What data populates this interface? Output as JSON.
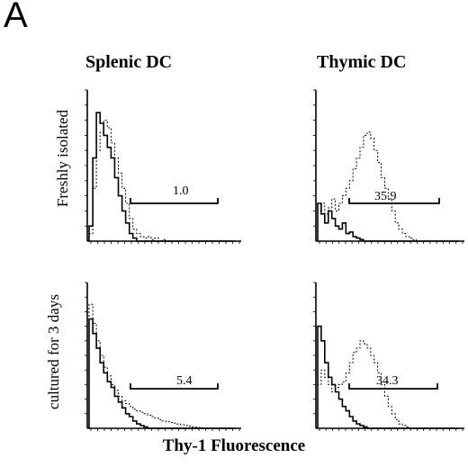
{
  "panel_label": "A",
  "columns": [
    "Splenic DC",
    "Thymic DC"
  ],
  "rows": [
    "Freshly isolated",
    "cultured for 3 days"
  ],
  "x_axis_title": "Thy-1 Fluorescence",
  "chart_data": [
    {
      "type": "area",
      "panel": "Splenic DC – Freshly isolated",
      "gate_percent": "1.0",
      "series": [
        {
          "style": "solid",
          "values": [
            0.1,
            0.55,
            0.85,
            0.78,
            0.7,
            0.62,
            0.55,
            0.42,
            0.3,
            0.2,
            0.12,
            0.05,
            0.02,
            0,
            0,
            0,
            0,
            0,
            0,
            0,
            0,
            0,
            0,
            0,
            0,
            0,
            0,
            0,
            0,
            0,
            0,
            0,
            0,
            0,
            0,
            0,
            0,
            0,
            0,
            0
          ]
        },
        {
          "style": "dotted",
          "values": [
            0.05,
            0.35,
            0.6,
            0.72,
            0.8,
            0.75,
            0.65,
            0.55,
            0.45,
            0.35,
            0.25,
            0.15,
            0.08,
            0.05,
            0.03,
            0.02,
            0.03,
            0.01,
            0.02,
            0,
            0.01,
            0,
            0,
            0,
            0,
            0,
            0,
            0,
            0,
            0,
            0,
            0,
            0,
            0,
            0,
            0,
            0,
            0,
            0,
            0
          ]
        }
      ]
    },
    {
      "type": "area",
      "panel": "Thymic DC – Freshly isolated",
      "gate_percent": "35.9",
      "series": [
        {
          "style": "solid",
          "values": [
            0.25,
            0.18,
            0.12,
            0.2,
            0.15,
            0.1,
            0.08,
            0.12,
            0.05,
            0.06,
            0.03,
            0.02,
            0.01,
            0,
            0,
            0,
            0,
            0,
            0,
            0,
            0,
            0,
            0,
            0,
            0,
            0,
            0,
            0,
            0,
            0,
            0,
            0,
            0,
            0,
            0,
            0,
            0,
            0,
            0,
            0
          ]
        },
        {
          "style": "dotted",
          "values": [
            0.2,
            0.25,
            0.18,
            0.22,
            0.28,
            0.2,
            0.25,
            0.3,
            0.35,
            0.4,
            0.48,
            0.55,
            0.62,
            0.7,
            0.72,
            0.68,
            0.6,
            0.52,
            0.42,
            0.35,
            0.28,
            0.2,
            0.12,
            0.08,
            0.05,
            0.03,
            0.02,
            0.01,
            0,
            0,
            0,
            0,
            0,
            0,
            0,
            0,
            0,
            0,
            0,
            0
          ]
        }
      ]
    },
    {
      "type": "area",
      "panel": "Splenic DC – cultured for 3 days",
      "gate_percent": "5.4",
      "series": [
        {
          "style": "solid",
          "values": [
            0.75,
            0.65,
            0.55,
            0.45,
            0.38,
            0.32,
            0.28,
            0.22,
            0.18,
            0.14,
            0.1,
            0.08,
            0.05,
            0.03,
            0.02,
            0.01,
            0,
            0,
            0,
            0,
            0,
            0,
            0,
            0,
            0,
            0,
            0,
            0,
            0,
            0,
            0,
            0,
            0,
            0,
            0,
            0,
            0,
            0,
            0,
            0
          ]
        },
        {
          "style": "dotted",
          "values": [
            0.85,
            0.72,
            0.6,
            0.5,
            0.42,
            0.36,
            0.3,
            0.26,
            0.22,
            0.19,
            0.17,
            0.15,
            0.13,
            0.12,
            0.11,
            0.1,
            0.09,
            0.08,
            0.07,
            0.06,
            0.05,
            0.045,
            0.04,
            0.035,
            0.03,
            0.025,
            0.02,
            0.015,
            0.01,
            0.008,
            0.005,
            0,
            0,
            0,
            0,
            0,
            0,
            0,
            0,
            0
          ]
        }
      ]
    },
    {
      "type": "area",
      "panel": "Thymic DC – cultured for 3 days",
      "gate_percent": "34.3",
      "series": [
        {
          "style": "solid",
          "values": [
            0.7,
            0.6,
            0.45,
            0.35,
            0.3,
            0.25,
            0.2,
            0.15,
            0.12,
            0.08,
            0.05,
            0.03,
            0.02,
            0.01,
            0,
            0,
            0,
            0,
            0,
            0,
            0,
            0,
            0,
            0,
            0,
            0,
            0,
            0,
            0,
            0,
            0,
            0,
            0,
            0,
            0,
            0,
            0,
            0,
            0,
            0
          ]
        },
        {
          "style": "dotted",
          "values": [
            0.3,
            0.4,
            0.35,
            0.3,
            0.25,
            0.28,
            0.3,
            0.32,
            0.38,
            0.45,
            0.52,
            0.55,
            0.6,
            0.58,
            0.55,
            0.5,
            0.45,
            0.38,
            0.3,
            0.22,
            0.15,
            0.1,
            0.06,
            0.03,
            0.02,
            0.01,
            0,
            0,
            0,
            0,
            0,
            0,
            0,
            0,
            0,
            0,
            0,
            0,
            0,
            0
          ]
        }
      ]
    }
  ]
}
